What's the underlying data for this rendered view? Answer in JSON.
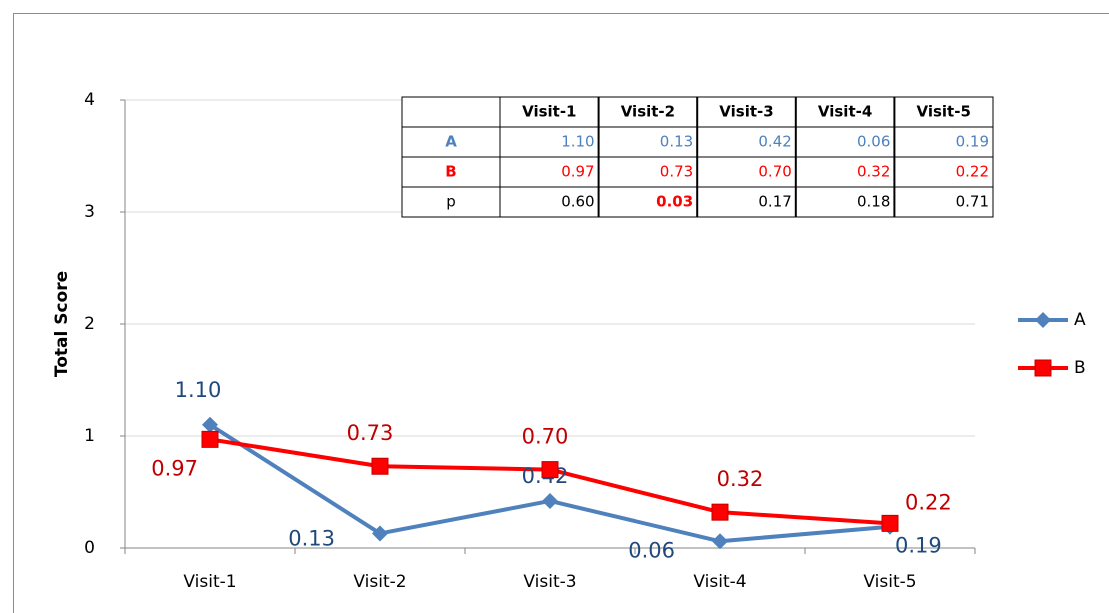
{
  "chart_data": {
    "type": "line",
    "y_label": "Total Score",
    "categories": [
      "Visit-1",
      "Visit-2",
      "Visit-3",
      "Visit-4",
      "Visit-5"
    ],
    "series": [
      {
        "name": "A",
        "color": "#4f81bd",
        "marker": "diamond",
        "values": [
          1.1,
          0.13,
          0.42,
          0.06,
          0.19
        ],
        "value_labels": [
          "1.10",
          "0.13",
          "0.42",
          "0.06",
          "0.19"
        ]
      },
      {
        "name": "B",
        "color": "#ff0000",
        "marker": "square",
        "values": [
          0.97,
          0.73,
          0.7,
          0.32,
          0.22
        ],
        "value_labels": [
          "0.97",
          "0.73",
          "0.70",
          "0.32",
          "0.22"
        ]
      }
    ],
    "ylim": [
      0,
      4
    ],
    "yticks": [
      0,
      1,
      2,
      3,
      4
    ],
    "grid": true,
    "legend": "right",
    "table": {
      "columns": [
        "Visit-1",
        "Visit-2",
        "Visit-3",
        "Visit-4",
        "Visit-5"
      ],
      "rows": [
        {
          "label": "A",
          "color": "#4f81bd",
          "cells": [
            "1.10",
            "0.13",
            "0.42",
            "0.06",
            "0.19"
          ]
        },
        {
          "label": "B",
          "color": "#ff0000",
          "cells": [
            "0.97",
            "0.73",
            "0.70",
            "0.32",
            "0.22"
          ]
        },
        {
          "label": "p",
          "color": "#000000",
          "cells": [
            "0.60",
            "0.03",
            "0.17",
            "0.18",
            "0.71"
          ],
          "highlight": [
            1
          ]
        }
      ]
    }
  }
}
